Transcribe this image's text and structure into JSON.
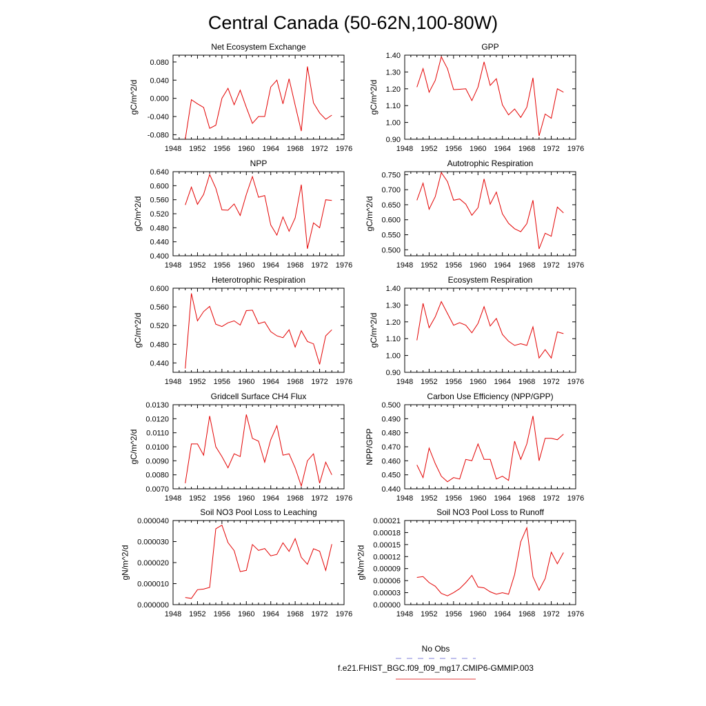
{
  "figure_title": "Central Canada (50-62N,100-80W)",
  "legend": {
    "obs_label": "No Obs",
    "obs_color": "#7f7fd9",
    "model_label": "f.e21.FHIST_BGC.f09_f09_mg17.CMIP6-GMMIP.003",
    "model_color": "#e33a3a"
  },
  "series_color": "#e30000",
  "chart_data": [
    {
      "type": "line",
      "title": "Net Ecosystem Exchange",
      "ylabel": "gC/m^2/d",
      "xlim": [
        1948,
        1976
      ],
      "xticks": [
        1948,
        1952,
        1956,
        1960,
        1964,
        1968,
        1972,
        1976
      ],
      "ylim": [
        -0.09,
        0.095
      ],
      "yticks": [
        "-0.080",
        "-0.040",
        "0.000",
        "0.040",
        "0.080"
      ],
      "x": [
        1950,
        1951,
        1952,
        1953,
        1954,
        1955,
        1956,
        1957,
        1958,
        1959,
        1960,
        1961,
        1962,
        1963,
        1964,
        1965,
        1966,
        1967,
        1968,
        1969,
        1970,
        1971,
        1972,
        1973,
        1974
      ],
      "values": [
        -0.09,
        -0.003,
        -0.012,
        -0.02,
        -0.066,
        -0.059,
        0.0,
        0.022,
        -0.014,
        0.018,
        -0.02,
        -0.055,
        -0.04,
        -0.04,
        0.025,
        0.04,
        -0.012,
        0.043,
        -0.015,
        -0.072,
        0.07,
        -0.01,
        -0.032,
        -0.046,
        -0.037
      ]
    },
    {
      "type": "line",
      "title": "GPP",
      "ylabel": "gC/m^2/d",
      "xlim": [
        1948,
        1976
      ],
      "xticks": [
        1948,
        1952,
        1956,
        1960,
        1964,
        1968,
        1972,
        1976
      ],
      "ylim": [
        0.9,
        1.4
      ],
      "yticks": [
        "0.90",
        "1.00",
        "1.10",
        "1.20",
        "1.30",
        "1.40"
      ],
      "x": [
        1950,
        1951,
        1952,
        1953,
        1954,
        1955,
        1956,
        1957,
        1958,
        1959,
        1960,
        1961,
        1962,
        1963,
        1964,
        1965,
        1966,
        1967,
        1968,
        1969,
        1970,
        1971,
        1972,
        1973,
        1974
      ],
      "values": [
        1.21,
        1.32,
        1.18,
        1.25,
        1.39,
        1.32,
        1.195,
        1.197,
        1.2,
        1.13,
        1.21,
        1.36,
        1.22,
        1.26,
        1.105,
        1.045,
        1.08,
        1.03,
        1.09,
        1.265,
        0.92,
        1.05,
        1.025,
        1.2,
        1.18
      ]
    },
    {
      "type": "line",
      "title": "NPP",
      "ylabel": "gC/m^2/d",
      "xlim": [
        1948,
        1976
      ],
      "xticks": [
        1948,
        1952,
        1956,
        1960,
        1964,
        1968,
        1972,
        1976
      ],
      "ylim": [
        0.4,
        0.64
      ],
      "yticks": [
        "0.400",
        "0.440",
        "0.480",
        "0.520",
        "0.560",
        "0.600",
        "0.640"
      ],
      "x": [
        1950,
        1951,
        1952,
        1953,
        1954,
        1955,
        1956,
        1957,
        1958,
        1959,
        1960,
        1961,
        1962,
        1963,
        1964,
        1965,
        1966,
        1967,
        1968,
        1969,
        1970,
        1971,
        1972,
        1973,
        1974
      ],
      "values": [
        0.545,
        0.596,
        0.547,
        0.575,
        0.632,
        0.593,
        0.531,
        0.53,
        0.548,
        0.515,
        0.575,
        0.626,
        0.567,
        0.572,
        0.488,
        0.459,
        0.511,
        0.47,
        0.508,
        0.603,
        0.42,
        0.494,
        0.48,
        0.56,
        0.558
      ]
    },
    {
      "type": "line",
      "title": "Autotrophic Respiration",
      "ylabel": "gC/m^2/d",
      "xlim": [
        1948,
        1976
      ],
      "xticks": [
        1948,
        1952,
        1956,
        1960,
        1964,
        1968,
        1972,
        1976
      ],
      "ylim": [
        0.48,
        0.76
      ],
      "yticks": [
        "0.500",
        "0.550",
        "0.600",
        "0.650",
        "0.700",
        "0.750"
      ],
      "x": [
        1950,
        1951,
        1952,
        1953,
        1954,
        1955,
        1956,
        1957,
        1958,
        1959,
        1960,
        1961,
        1962,
        1963,
        1964,
        1965,
        1966,
        1967,
        1968,
        1969,
        1970,
        1971,
        1972,
        1973,
        1974
      ],
      "values": [
        0.665,
        0.722,
        0.635,
        0.677,
        0.757,
        0.727,
        0.665,
        0.669,
        0.652,
        0.615,
        0.64,
        0.736,
        0.652,
        0.692,
        0.62,
        0.588,
        0.57,
        0.56,
        0.587,
        0.665,
        0.503,
        0.555,
        0.545,
        0.642,
        0.623
      ]
    },
    {
      "type": "line",
      "title": "Heterotrophic Respiration",
      "ylabel": "gC/m^2/d",
      "xlim": [
        1948,
        1976
      ],
      "xticks": [
        1948,
        1952,
        1956,
        1960,
        1964,
        1968,
        1972,
        1976
      ],
      "ylim": [
        0.42,
        0.6
      ],
      "yticks": [
        "0.440",
        "0.480",
        "0.520",
        "0.560",
        "0.600"
      ],
      "x": [
        1950,
        1951,
        1952,
        1953,
        1954,
        1955,
        1956,
        1957,
        1958,
        1959,
        1960,
        1961,
        1962,
        1963,
        1964,
        1965,
        1966,
        1967,
        1968,
        1969,
        1970,
        1971,
        1972,
        1973,
        1974
      ],
      "values": [
        0.428,
        0.589,
        0.53,
        0.55,
        0.561,
        0.523,
        0.518,
        0.526,
        0.53,
        0.521,
        0.552,
        0.553,
        0.524,
        0.528,
        0.507,
        0.498,
        0.494,
        0.511,
        0.474,
        0.509,
        0.486,
        0.481,
        0.437,
        0.498,
        0.511
      ]
    },
    {
      "type": "line",
      "title": "Ecosystem Respiration",
      "ylabel": "gC/m^2/d",
      "xlim": [
        1948,
        1976
      ],
      "xticks": [
        1948,
        1952,
        1956,
        1960,
        1964,
        1968,
        1972,
        1976
      ],
      "ylim": [
        0.9,
        1.4
      ],
      "yticks": [
        "0.90",
        "1.00",
        "1.10",
        "1.20",
        "1.30",
        "1.40"
      ],
      "x": [
        1950,
        1951,
        1952,
        1953,
        1954,
        1955,
        1956,
        1957,
        1958,
        1959,
        1960,
        1961,
        1962,
        1963,
        1964,
        1965,
        1966,
        1967,
        1968,
        1969,
        1970,
        1971,
        1972,
        1973,
        1974
      ],
      "values": [
        1.09,
        1.31,
        1.165,
        1.23,
        1.32,
        1.25,
        1.18,
        1.195,
        1.18,
        1.135,
        1.19,
        1.29,
        1.175,
        1.22,
        1.125,
        1.085,
        1.06,
        1.07,
        1.06,
        1.17,
        0.985,
        1.035,
        0.985,
        1.14,
        1.13
      ]
    },
    {
      "type": "line",
      "title": "Gridcell Surface CH4 Flux",
      "ylabel": "gC/m^2/d",
      "xlim": [
        1948,
        1976
      ],
      "xticks": [
        1948,
        1952,
        1956,
        1960,
        1964,
        1968,
        1972,
        1976
      ],
      "ylim": [
        0.007,
        0.013
      ],
      "yticks": [
        "0.0070",
        "0.0080",
        "0.0090",
        "0.0100",
        "0.0110",
        "0.0120",
        "0.0130"
      ],
      "x": [
        1950,
        1951,
        1952,
        1953,
        1954,
        1955,
        1956,
        1957,
        1958,
        1959,
        1960,
        1961,
        1962,
        1963,
        1964,
        1965,
        1966,
        1967,
        1968,
        1969,
        1970,
        1971,
        1972,
        1973,
        1974
      ],
      "values": [
        0.0074,
        0.0102,
        0.0102,
        0.0094,
        0.0122,
        0.01,
        0.0093,
        0.0085,
        0.0095,
        0.0093,
        0.0123,
        0.0106,
        0.0104,
        0.0089,
        0.0105,
        0.0115,
        0.0094,
        0.0095,
        0.0085,
        0.0072,
        0.009,
        0.0095,
        0.0074,
        0.0089,
        0.008
      ]
    },
    {
      "type": "line",
      "title": "Carbon Use Efficiency (NPP/GPP)",
      "ylabel": "NPP/GPP",
      "xlim": [
        1948,
        1976
      ],
      "xticks": [
        1948,
        1952,
        1956,
        1960,
        1964,
        1968,
        1972,
        1976
      ],
      "ylim": [
        0.44,
        0.5
      ],
      "yticks": [
        "0.440",
        "0.450",
        "0.460",
        "0.470",
        "0.480",
        "0.490",
        "0.500"
      ],
      "x": [
        1950,
        1951,
        1952,
        1953,
        1954,
        1955,
        1956,
        1957,
        1958,
        1959,
        1960,
        1961,
        1962,
        1963,
        1964,
        1965,
        1966,
        1967,
        1968,
        1969,
        1970,
        1971,
        1972,
        1973,
        1974
      ],
      "values": [
        0.457,
        0.448,
        0.469,
        0.458,
        0.449,
        0.445,
        0.448,
        0.447,
        0.461,
        0.46,
        0.472,
        0.461,
        0.461,
        0.447,
        0.449,
        0.446,
        0.474,
        0.461,
        0.472,
        0.492,
        0.46,
        0.476,
        0.476,
        0.475,
        0.479
      ]
    },
    {
      "type": "line",
      "title": "Soil NO3 Pool Loss to Leaching",
      "ylabel": "gN/m^2/d",
      "xlim": [
        1948,
        1976
      ],
      "xticks": [
        1948,
        1952,
        1956,
        1960,
        1964,
        1968,
        1972,
        1976
      ],
      "ylim": [
        0,
        4e-05
      ],
      "yticks": [
        "0.000000",
        "0.000010",
        "0.000020",
        "0.000030",
        "0.000040"
      ],
      "x": [
        1950,
        1951,
        1952,
        1953,
        1954,
        1955,
        1956,
        1957,
        1958,
        1959,
        1960,
        1961,
        1962,
        1963,
        1964,
        1965,
        1966,
        1967,
        1968,
        1969,
        1970,
        1971,
        1972,
        1973,
        1974
      ],
      "values": [
        3.4e-06,
        3e-06,
        7.1e-06,
        7.4e-06,
        8.2e-06,
        3.61e-05,
        3.78e-05,
        2.95e-05,
        2.57e-05,
        1.57e-05,
        1.63e-05,
        2.86e-05,
        2.58e-05,
        2.67e-05,
        2.32e-05,
        2.39e-05,
        2.94e-05,
        2.53e-05,
        3.14e-05,
        2.25e-05,
        1.92e-05,
        2.66e-05,
        2.54e-05,
        1.63e-05,
        2.88e-05
      ]
    },
    {
      "type": "line",
      "title": "Soil NO3 Pool Loss to Runoff",
      "ylabel": "gN/m^2/d",
      "xlim": [
        1948,
        1976
      ],
      "xticks": [
        1948,
        1952,
        1956,
        1960,
        1964,
        1968,
        1972,
        1976
      ],
      "ylim": [
        0,
        0.00021
      ],
      "yticks": [
        "0.00000",
        "0.00003",
        "0.00006",
        "0.00009",
        "0.00012",
        "0.00015",
        "0.00018",
        "0.00021"
      ],
      "x": [
        1950,
        1951,
        1952,
        1953,
        1954,
        1955,
        1956,
        1957,
        1958,
        1959,
        1960,
        1961,
        1962,
        1963,
        1964,
        1965,
        1966,
        1967,
        1968,
        1969,
        1970,
        1971,
        1972,
        1973,
        1974
      ],
      "values": [
        6.8e-05,
        7e-05,
        5.5e-05,
        4.6e-05,
        2.8e-05,
        2.2e-05,
        3e-05,
        4e-05,
        5.5e-05,
        7.3e-05,
        4.4e-05,
        4.2e-05,
        3.2e-05,
        2.6e-05,
        3e-05,
        2.6e-05,
        7.5e-05,
        0.000157,
        0.000192,
        7e-05,
        3.6e-05,
        6.5e-05,
        0.000131,
        0.000102,
        0.00013
      ]
    }
  ]
}
